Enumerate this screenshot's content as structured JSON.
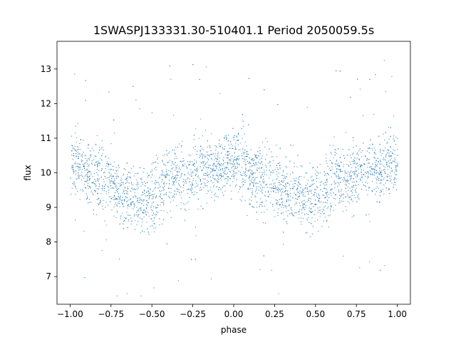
{
  "chart_data": {
    "type": "scatter",
    "title": "1SWASPJ133331.30-510401.1 Period 2050059.5s",
    "xlabel": "phase",
    "ylabel": "flux",
    "xlim": [
      -1.08,
      1.08
    ],
    "ylim": [
      6.2,
      13.8
    ],
    "xticks": [
      -1.0,
      -0.75,
      -0.5,
      -0.25,
      0.0,
      0.25,
      0.5,
      0.75,
      1.0
    ],
    "xtick_labels": [
      "−1.00",
      "−0.75",
      "−0.50",
      "−0.25",
      "0.00",
      "0.25",
      "0.50",
      "0.75",
      "1.00"
    ],
    "yticks": [
      7,
      8,
      9,
      10,
      11,
      12,
      13
    ],
    "ytick_labels": [
      "7",
      "8",
      "9",
      "10",
      "11",
      "12",
      "13"
    ],
    "grid": false,
    "marker_color": "#1f77b4",
    "series": [
      {
        "phase": [
          -1.0,
          -0.95,
          -0.9,
          -0.85,
          -0.8,
          -0.75,
          -0.7,
          -0.65,
          -0.6,
          -0.55,
          -0.5,
          -0.45,
          -0.4,
          -0.35,
          -0.3,
          -0.25,
          -0.2,
          -0.15,
          -0.1,
          -0.05,
          0.0,
          0.05,
          0.1,
          0.15,
          0.2,
          0.25,
          0.3,
          0.35,
          0.4,
          0.45,
          0.5,
          0.55,
          0.6,
          0.65,
          0.7,
          0.75,
          0.8,
          0.85,
          0.9,
          0.95,
          1.0
        ],
        "flux_center": [
          10.3,
          10.2,
          10.0,
          9.8,
          9.9,
          9.7,
          9.4,
          9.4,
          9.3,
          9.2,
          9.3,
          9.5,
          9.9,
          9.9,
          9.8,
          10.0,
          10.2,
          10.2,
          10.1,
          10.3,
          10.3,
          10.2,
          10.0,
          9.8,
          9.9,
          9.7,
          9.4,
          9.4,
          9.3,
          9.2,
          9.3,
          9.5,
          9.9,
          9.9,
          9.8,
          10.0,
          10.2,
          10.2,
          10.1,
          10.3,
          10.3
        ],
        "flux_spread": [
          0.8,
          0.8,
          0.8,
          0.9,
          0.9,
          0.8,
          0.8,
          0.8,
          0.8,
          0.8,
          0.9,
          0.9,
          0.9,
          0.8,
          0.8,
          0.8,
          0.8,
          0.8,
          0.8,
          0.8,
          0.8,
          0.8,
          0.8,
          0.9,
          0.9,
          0.8,
          0.8,
          0.8,
          0.8,
          0.8,
          0.9,
          0.9,
          0.9,
          0.8,
          0.8,
          0.8,
          0.8,
          0.8,
          0.8,
          0.8,
          0.8
        ]
      }
    ]
  }
}
